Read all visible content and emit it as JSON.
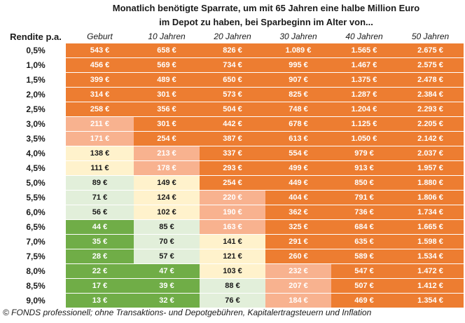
{
  "chart_data": {
    "type": "table",
    "title": "Monatlich benötigte Sparrate, um mit 65 Jahren eine halbe Million Euro im Depot zu haben, bei Sparbeginn im Alter von...",
    "row_header": "Rendite p.a.",
    "columns": [
      "Geburt",
      "10 Jahren",
      "20 Jahren",
      "30 Jahren",
      "40 Jahren",
      "50 Jahren"
    ],
    "rows": [
      {
        "rate": "0,5%",
        "values": [
          "543 €",
          "658 €",
          "826 €",
          "1.089 €",
          "1.565 €",
          "2.675 €"
        ]
      },
      {
        "rate": "1,0%",
        "values": [
          "456 €",
          "569 €",
          "734 €",
          "995 €",
          "1.467 €",
          "2.575 €"
        ]
      },
      {
        "rate": "1,5%",
        "values": [
          "399 €",
          "489 €",
          "650 €",
          "907 €",
          "1.375 €",
          "2.478 €"
        ]
      },
      {
        "rate": "2,0%",
        "values": [
          "314 €",
          "301 €",
          "573 €",
          "825 €",
          "1.287 €",
          "2.384 €"
        ]
      },
      {
        "rate": "2,5%",
        "values": [
          "258 €",
          "356 €",
          "504 €",
          "748 €",
          "1.204 €",
          "2.293 €"
        ]
      },
      {
        "rate": "3,0%",
        "values": [
          "211 €",
          "301 €",
          "442 €",
          "678 €",
          "1.125 €",
          "2.205 €"
        ]
      },
      {
        "rate": "3,5%",
        "values": [
          "171 €",
          "254 €",
          "387 €",
          "613 €",
          "1.050 €",
          "2.142 €"
        ]
      },
      {
        "rate": "4,0%",
        "values": [
          "138 €",
          "213 €",
          "337 €",
          "554 €",
          "979 €",
          "2.037 €"
        ]
      },
      {
        "rate": "4,5%",
        "values": [
          "111 €",
          "178 €",
          "293 €",
          "499 €",
          "913 €",
          "1.957 €"
        ]
      },
      {
        "rate": "5,0%",
        "values": [
          "89 €",
          "149 €",
          "254 €",
          "449 €",
          "850 €",
          "1.880 €"
        ]
      },
      {
        "rate": "5,5%",
        "values": [
          "71 €",
          "124 €",
          "220 €",
          "404 €",
          "791 €",
          "1.806 €"
        ]
      },
      {
        "rate": "6,0%",
        "values": [
          "56 €",
          "102 €",
          "190 €",
          "362 €",
          "736 €",
          "1.734 €"
        ]
      },
      {
        "rate": "6,5%",
        "values": [
          "44 €",
          "85 €",
          "163 €",
          "325 €",
          "684 €",
          "1.665 €"
        ]
      },
      {
        "rate": "7,0%",
        "values": [
          "35 €",
          "70 €",
          "141 €",
          "291 €",
          "635 €",
          "1.598 €"
        ]
      },
      {
        "rate": "7,5%",
        "values": [
          "28 €",
          "57 €",
          "121 €",
          "260 €",
          "589 €",
          "1.534 €"
        ]
      },
      {
        "rate": "8,0%",
        "values": [
          "22 €",
          "47 €",
          "103 €",
          "232 €",
          "547 €",
          "1.472 €"
        ]
      },
      {
        "rate": "8,5%",
        "values": [
          "17 €",
          "39 €",
          "88 €",
          "207 €",
          "507 €",
          "1.412 €"
        ]
      },
      {
        "rate": "9,0%",
        "values": [
          "13 €",
          "32 €",
          "76 €",
          "184 €",
          "469 €",
          "1.354 €"
        ]
      }
    ],
    "cell_colors": [
      [
        "orange",
        "orange",
        "orange",
        "orange",
        "orange",
        "orange"
      ],
      [
        "orange",
        "orange",
        "orange",
        "orange",
        "orange",
        "orange"
      ],
      [
        "orange",
        "orange",
        "orange",
        "orange",
        "orange",
        "orange"
      ],
      [
        "orange",
        "orange",
        "orange",
        "orange",
        "orange",
        "orange"
      ],
      [
        "orange",
        "orange",
        "orange",
        "orange",
        "orange",
        "orange"
      ],
      [
        "salmon",
        "orange",
        "orange",
        "orange",
        "orange",
        "orange"
      ],
      [
        "salmon",
        "orange",
        "orange",
        "orange",
        "orange",
        "orange"
      ],
      [
        "cream",
        "salmon",
        "orange",
        "orange",
        "orange",
        "orange"
      ],
      [
        "cream",
        "salmon",
        "orange",
        "orange",
        "orange",
        "orange"
      ],
      [
        "lgreen",
        "cream",
        "orange",
        "orange",
        "orange",
        "orange"
      ],
      [
        "lgreen",
        "cream",
        "salmon",
        "orange",
        "orange",
        "orange"
      ],
      [
        "lgreen",
        "cream",
        "salmon",
        "orange",
        "orange",
        "orange"
      ],
      [
        "green",
        "lgreen",
        "salmon",
        "orange",
        "orange",
        "orange"
      ],
      [
        "green",
        "lgreen",
        "cream",
        "orange",
        "orange",
        "orange"
      ],
      [
        "green",
        "lgreen",
        "cream",
        "orange",
        "orange",
        "orange"
      ],
      [
        "green",
        "green",
        "cream",
        "salmon",
        "orange",
        "orange"
      ],
      [
        "green",
        "green",
        "lgreen",
        "salmon",
        "orange",
        "orange"
      ],
      [
        "green",
        "green",
        "lgreen",
        "salmon",
        "orange",
        "orange"
      ]
    ],
    "palette": {
      "orange": "#ed7d31",
      "salmon": "#f8b28f",
      "cream": "#fff2cc",
      "lgreen": "#e2efda",
      "green": "#70ad47"
    }
  },
  "title": {
    "line1": "Monatlich benötigte Sparrate, um mit 65 Jahren eine halbe Million Euro",
    "line2": "im Depot zu haben, bei Sparbeginn im Alter von..."
  },
  "footnote": "© FONDS professionell; ohne Transaktions- und Depotgebühren, Kapitalertragsteuern und Inflation"
}
